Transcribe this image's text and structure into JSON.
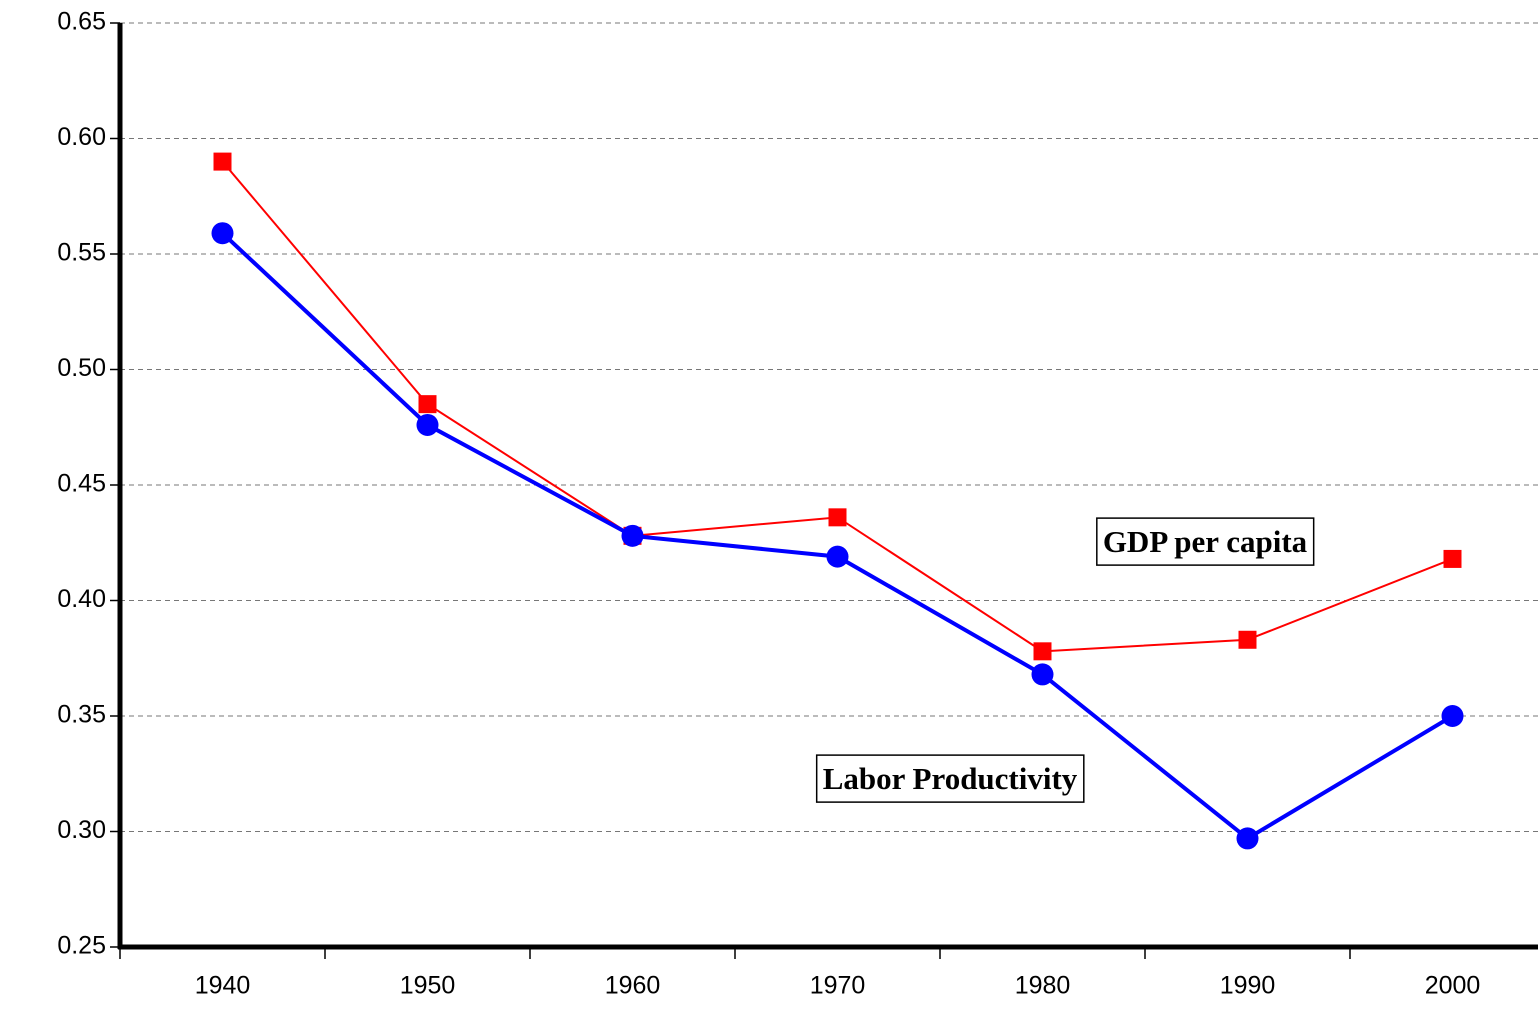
{
  "chart_data": {
    "type": "line",
    "categories": [
      "1940",
      "1950",
      "1960",
      "1970",
      "1980",
      "1990",
      "2000"
    ],
    "series": [
      {
        "name": "GDP per capita",
        "color": "#ff0000",
        "marker": "square",
        "values": [
          0.59,
          0.485,
          0.428,
          0.436,
          0.378,
          0.383,
          0.418
        ]
      },
      {
        "name": "Labor Productivity",
        "color": "#0000ff",
        "marker": "circle",
        "values": [
          0.559,
          0.476,
          0.428,
          0.419,
          0.368,
          0.297,
          0.35
        ]
      }
    ],
    "ylim": [
      0.25,
      0.65
    ],
    "yticks": [
      0.25,
      {
        "value": 0.3,
        "label": "0.30"
      },
      0.35,
      {
        "value": 0.4,
        "label": "0.40"
      },
      0.45,
      {
        "value": 0.5,
        "label": "0.50"
      },
      0.55,
      {
        "value": 0.6,
        "label": "0.60"
      },
      0.65
    ],
    "grid": true
  }
}
